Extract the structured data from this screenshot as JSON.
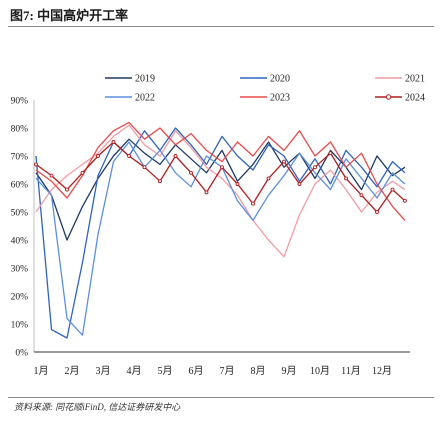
{
  "source": "资料来源: 同花顺iFinD, 信达证券研发中心",
  "chart_data": {
    "type": "line",
    "title": "图7: 中国高炉开工率",
    "xlabel": "",
    "ylabel": "",
    "xlim": [
      1,
      13
    ],
    "ylim": [
      0,
      90
    ],
    "grid": false,
    "legend": "top",
    "x_ticks": [
      {
        "value": 1,
        "label": "1月"
      },
      {
        "value": 2,
        "label": "2月"
      },
      {
        "value": 3,
        "label": "3月"
      },
      {
        "value": 4,
        "label": "4月"
      },
      {
        "value": 5,
        "label": "5月"
      },
      {
        "value": 6,
        "label": "6月"
      },
      {
        "value": 7,
        "label": "7月"
      },
      {
        "value": 8,
        "label": "8月"
      },
      {
        "value": 9,
        "label": "9月"
      },
      {
        "value": 10,
        "label": "10月"
      },
      {
        "value": 11,
        "label": "11月"
      },
      {
        "value": 12,
        "label": "12月"
      }
    ],
    "y_ticks": [
      {
        "value": 0,
        "label": "0%"
      },
      {
        "value": 10,
        "label": "10%"
      },
      {
        "value": 20,
        "label": "20%"
      },
      {
        "value": 30,
        "label": "30%"
      },
      {
        "value": 40,
        "label": "40%"
      },
      {
        "value": 50,
        "label": "50%"
      },
      {
        "value": 60,
        "label": "60%"
      },
      {
        "value": 70,
        "label": "70%"
      },
      {
        "value": 80,
        "label": "80%"
      },
      {
        "value": 90,
        "label": "90%"
      }
    ],
    "x": [
      1,
      1.5,
      2,
      2.5,
      3,
      3.5,
      4,
      4.5,
      5,
      5.5,
      6,
      6.5,
      7,
      7.5,
      8,
      8.5,
      9,
      9.5,
      10,
      10.5,
      11,
      11.5,
      12,
      12.5,
      12.9
    ],
    "series": [
      {
        "name": "2019",
        "color": "#1f3864",
        "marker": "none",
        "values": [
          64,
          56,
          40,
          52,
          62,
          70,
          76,
          71,
          67,
          74,
          69,
          64,
          72,
          61,
          67,
          75,
          66,
          71,
          62,
          72,
          66,
          58,
          70,
          63,
          66
        ]
      },
      {
        "name": "2020",
        "color": "#2e63c0",
        "marker": "none",
        "values": [
          70,
          8,
          5,
          32,
          63,
          75,
          70,
          79,
          72,
          80,
          74,
          67,
          77,
          70,
          65,
          74,
          70,
          61,
          69,
          60,
          72,
          66,
          59,
          68,
          64
        ]
      },
      {
        "name": "2021",
        "color": "#f29ca4",
        "marker": "none",
        "values": [
          50,
          58,
          63,
          67,
          71,
          77,
          81,
          74,
          70,
          79,
          73,
          66,
          62,
          56,
          47,
          40,
          34,
          49,
          60,
          65,
          58,
          50,
          57,
          61,
          58
        ]
      },
      {
        "name": "2022",
        "color": "#5b8fe0",
        "marker": "none",
        "values": [
          62,
          56,
          12,
          6,
          42,
          68,
          75,
          66,
          72,
          64,
          59,
          70,
          66,
          54,
          47,
          56,
          63,
          71,
          64,
          58,
          69,
          62,
          55,
          64,
          60
        ]
      },
      {
        "name": "2023",
        "color": "#e84a4a",
        "marker": "none",
        "values": [
          65,
          61,
          55,
          63,
          73,
          79,
          82,
          76,
          80,
          74,
          78,
          72,
          68,
          75,
          70,
          77,
          72,
          79,
          70,
          75,
          66,
          71,
          60,
          52,
          47
        ]
      },
      {
        "name": "2024",
        "color": "#b01e1e",
        "marker": "circle",
        "values": [
          67,
          63,
          58,
          64,
          70,
          75,
          70,
          66,
          61,
          70,
          64,
          57,
          66,
          60,
          53,
          62,
          68,
          60,
          66,
          71,
          62,
          56,
          50,
          58,
          54
        ]
      }
    ]
  }
}
